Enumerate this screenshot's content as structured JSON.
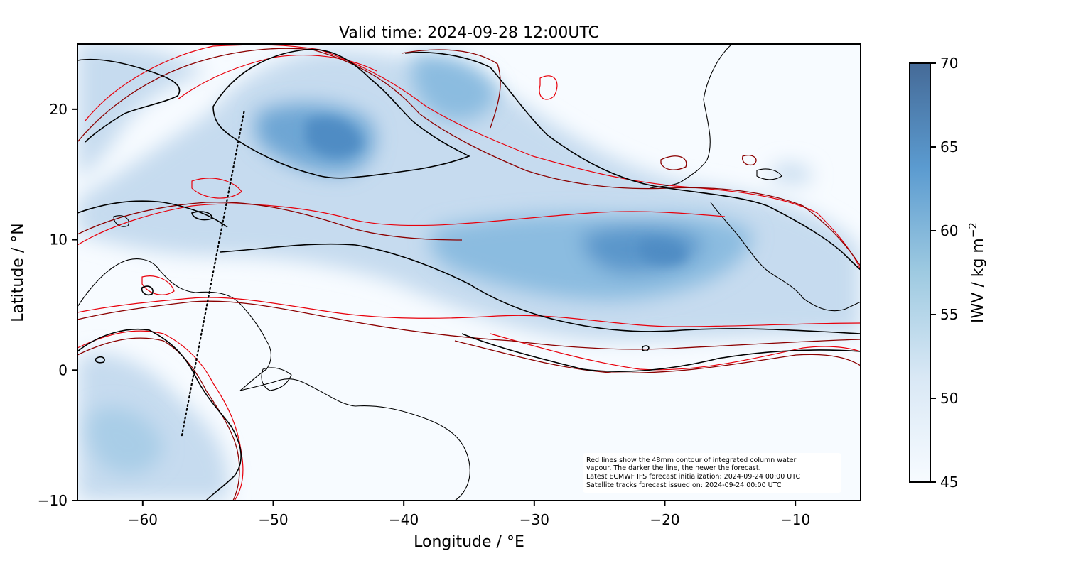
{
  "title": "Valid time: 2024-09-28 12:00UTC",
  "map": {
    "xlabel": "Longitude / °E",
    "ylabel": "Latitude / °N",
    "xlim": [
      -65,
      -5
    ],
    "ylim": [
      -10,
      25
    ],
    "xticks": [
      -60,
      -50,
      -40,
      -30,
      -20,
      -10
    ],
    "yticks": [
      -10,
      0,
      10,
      20
    ],
    "xtick_labels": [
      "−60",
      "−50",
      "−40",
      "−30",
      "−20",
      "−10"
    ],
    "ytick_labels": [
      "−10",
      "0",
      "10",
      "20"
    ],
    "field": "integrated water vapour",
    "contour_level_mm": 48,
    "colors": {
      "contour_old": "#e8000b",
      "contour_mid": "#8b0000",
      "contour_new": "#000000",
      "coastline": "#000000",
      "track": "#000000"
    },
    "satellite_track": [
      [
        -57,
        -5
      ],
      [
        -52.2,
        20
      ]
    ]
  },
  "colorbar": {
    "label": "IWV / kg m",
    "label_sup": "−2",
    "range": [
      45,
      70
    ],
    "ticks": [
      45,
      50,
      55,
      60,
      65,
      70
    ],
    "cmap": [
      "#f7fbff",
      "#c6dbef",
      "#6baed6",
      "#3e7cb8",
      "#456a97"
    ]
  },
  "note": {
    "lines": [
      "Red lines show the 48mm contour of integrated column water",
      "vapour. The darker the line, the newer the forecast.",
      "Latest ECMWF IFS forecast initialization: 2024-09-24 00:00 UTC",
      "Satellite tracks forecast issued on: 2024-09-24 00:00 UTC"
    ]
  }
}
